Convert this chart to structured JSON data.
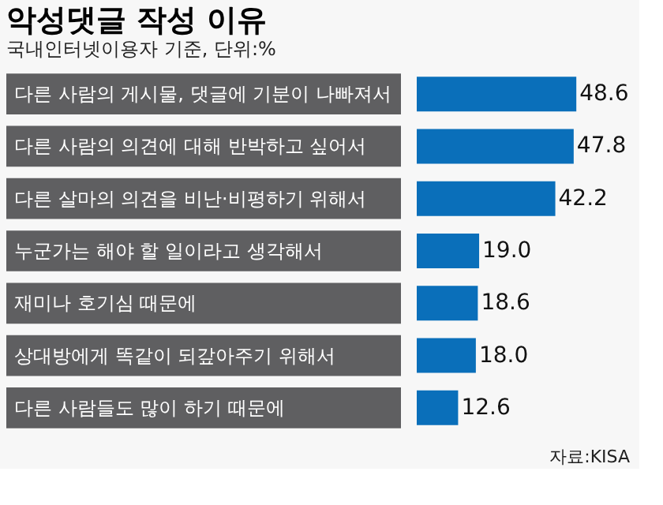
{
  "chart_data": {
    "type": "bar",
    "orientation": "horizontal",
    "title": "악성댓글 작성 이유",
    "subtitle": "국내인터넷이용자 기준, 단위:%",
    "categories": [
      "다른 사람의 게시물, 댓글에 기분이 나빠져서",
      "다른 사람의 의견에 대해 반박하고 싶어서",
      "다른 살마의 의견을 비난·비평하기 위해서",
      "누군가는 해야 할 일이라고 생각해서",
      "재미나 호기심 때문에",
      "상대방에게 똑같이 되갚아주기 위해서",
      "다른 사람들도 많이 하기 때문에"
    ],
    "values": [
      48.6,
      47.8,
      42.2,
      19.0,
      18.6,
      18.0,
      12.6
    ],
    "value_labels": [
      "48.6",
      "47.8",
      "42.2",
      "19.0",
      "18.6",
      "18.0",
      "12.6"
    ],
    "color": "#0a6fba",
    "annotations": [
      "자료:KISA"
    ]
  }
}
